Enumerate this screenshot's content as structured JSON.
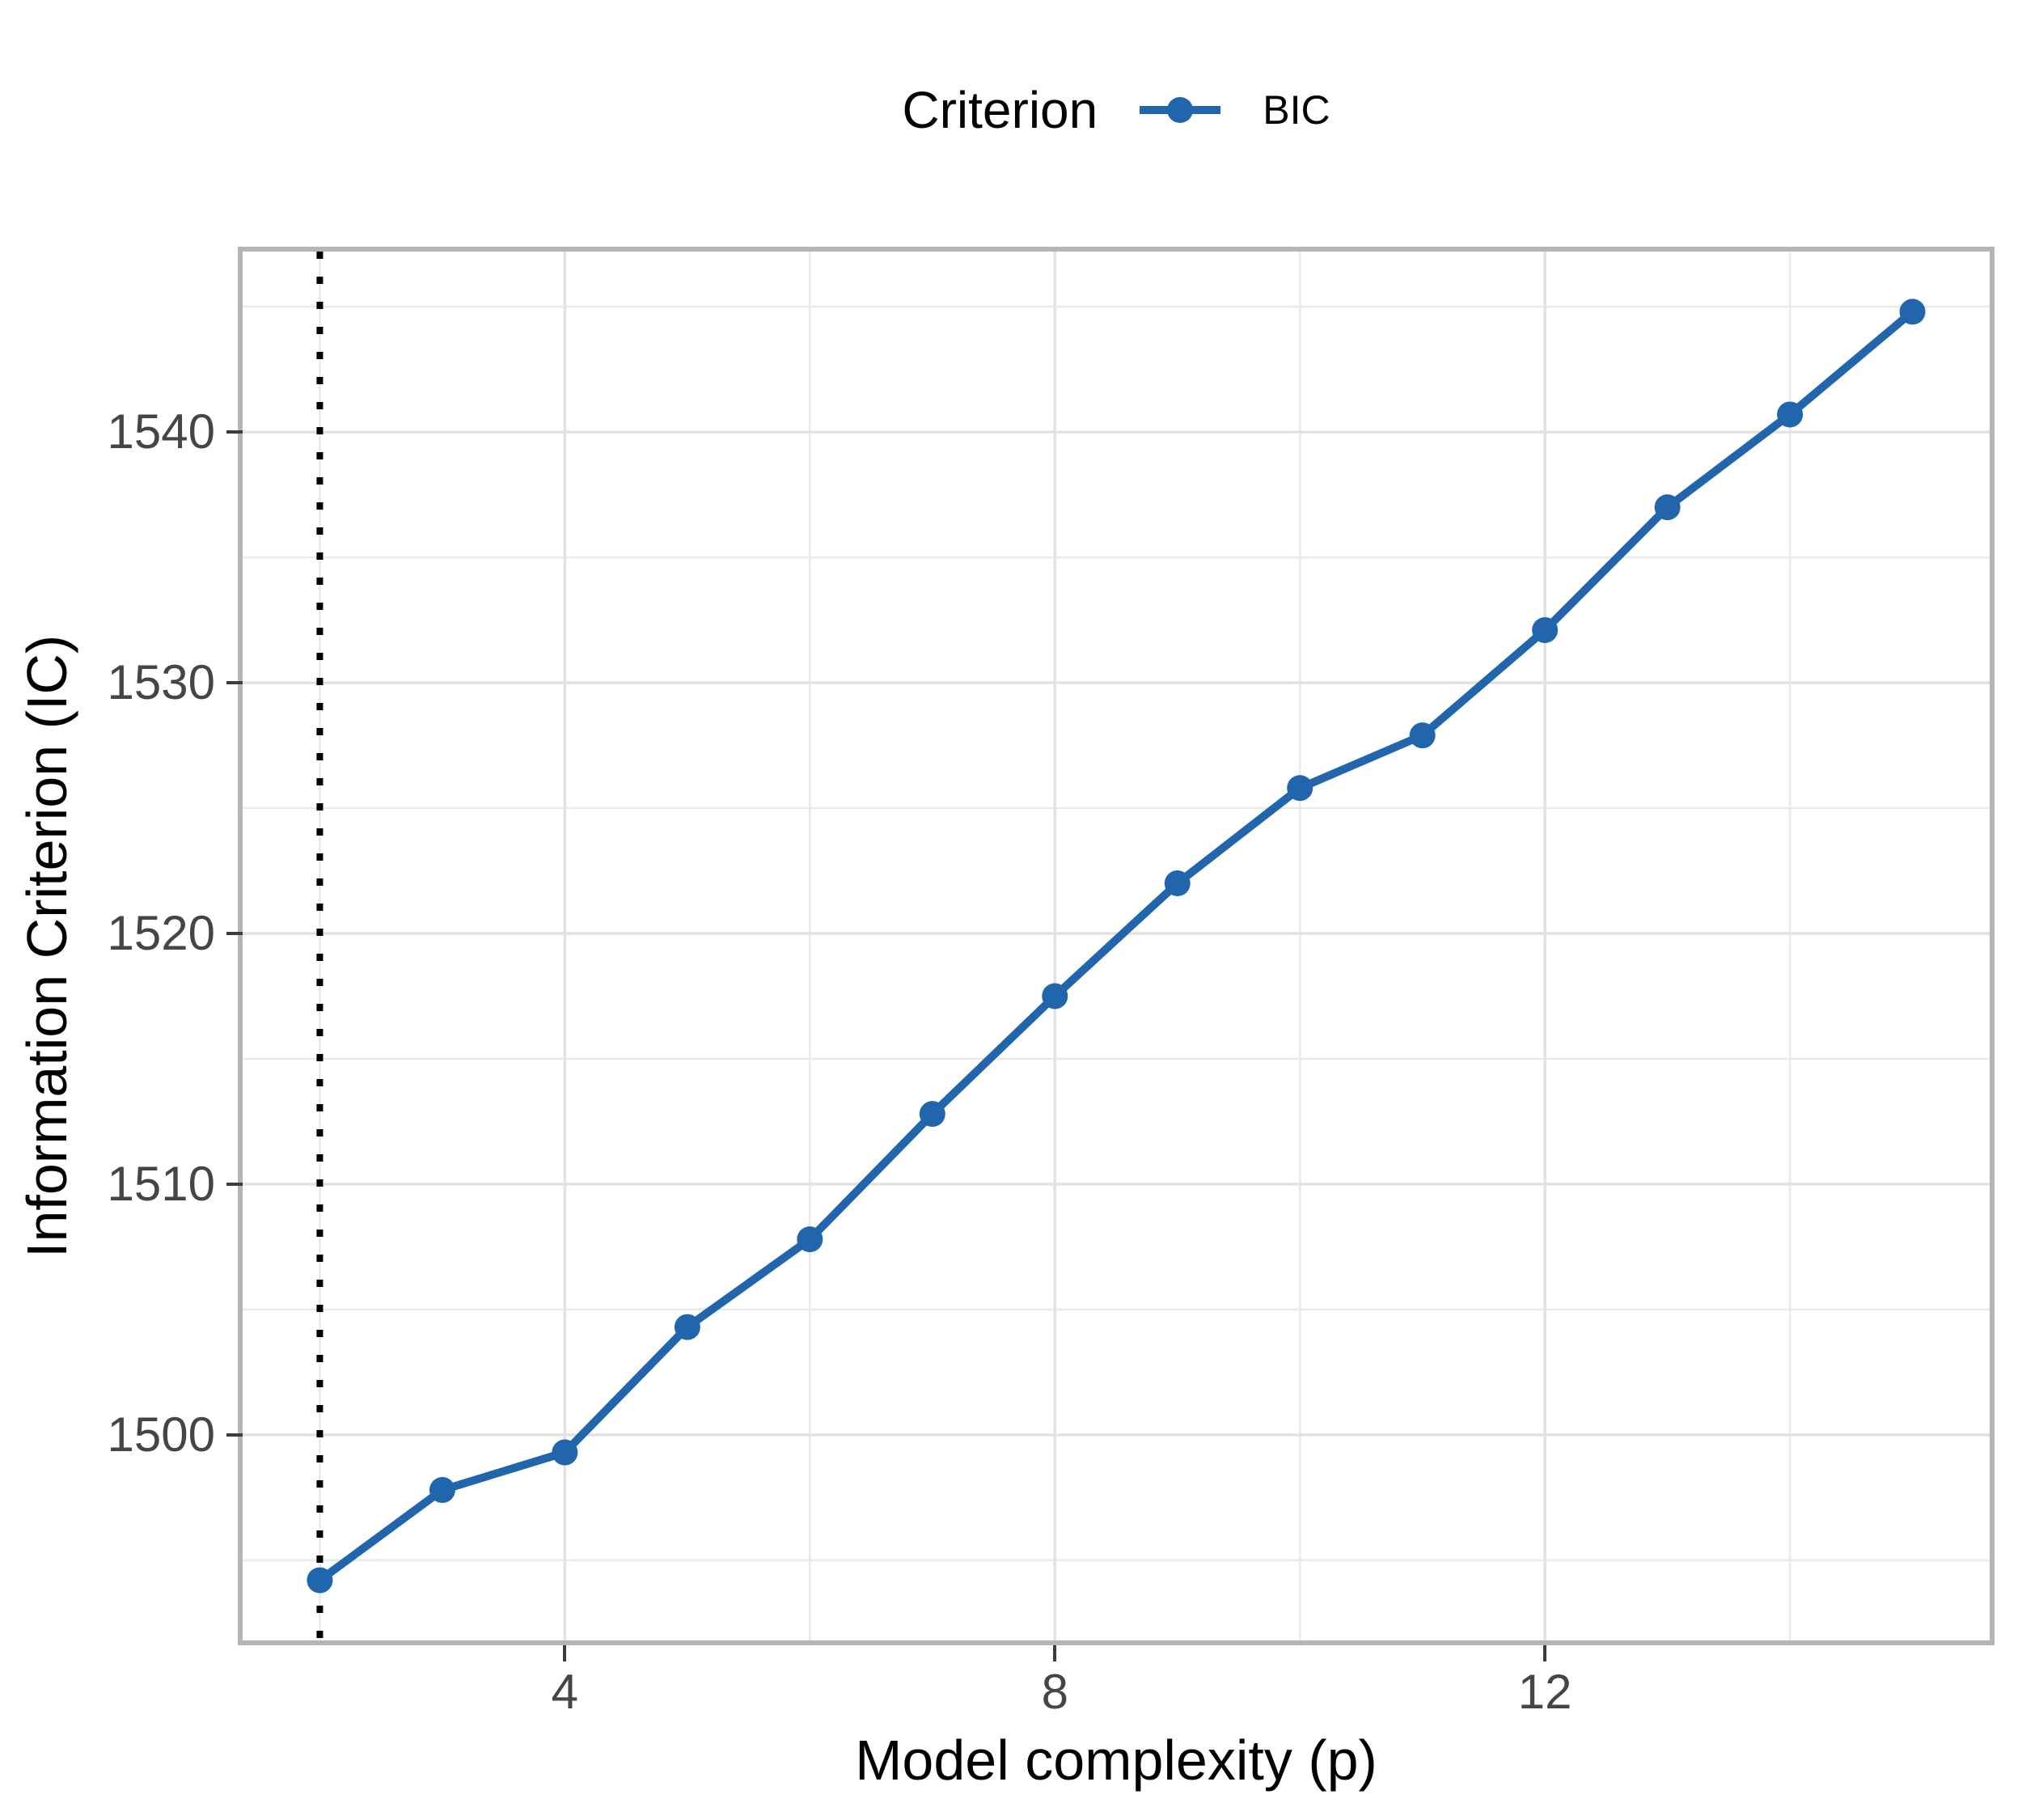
{
  "legend": {
    "title": "Criterion",
    "entries": [
      {
        "label": "BIC",
        "color": "#2166ac"
      }
    ]
  },
  "colors": {
    "series": "#2166ac",
    "grid_major": "#e2e2e2",
    "grid_minor": "#e9e9e9",
    "panel_border": "#b5b5b5",
    "tick_mark": "#3c3c3c",
    "tick_label": "#454545",
    "axis_title": "#000000",
    "vline": "#000000",
    "background": "#ffffff"
  },
  "chart_data": {
    "type": "line",
    "title": "",
    "xlabel": "Model complexity (p)",
    "ylabel": "Information Criterion (IC)",
    "x": [
      2,
      3,
      4,
      5,
      6,
      7,
      8,
      9,
      10,
      11,
      12,
      13,
      14,
      15
    ],
    "series": [
      {
        "name": "BIC",
        "values": [
          1494.2,
          1497.8,
          1499.3,
          1504.3,
          1507.8,
          1512.8,
          1517.5,
          1522.0,
          1525.8,
          1527.9,
          1532.1,
          1537.0,
          1540.7,
          1544.8
        ]
      }
    ],
    "x_domain": [
      1.37,
      15.63
    ],
    "y_domain": [
      1491.8,
      1547.2
    ],
    "x_major_ticks": [
      4,
      8,
      12
    ],
    "x_minor_gridlines": [
      2,
      6,
      10,
      14
    ],
    "y_major_ticks": [
      1500,
      1510,
      1520,
      1530,
      1540
    ],
    "y_minor_gridlines": [
      1495,
      1505,
      1515,
      1525,
      1535,
      1545
    ],
    "vline": {
      "x": 2,
      "linetype": "dotted",
      "color": "#000000"
    },
    "legend_position": "top",
    "grid": true,
    "marker_radius": 16,
    "line_width": 10
  }
}
